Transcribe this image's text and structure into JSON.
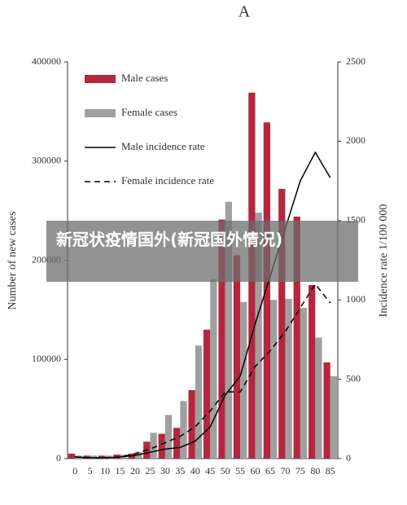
{
  "chart_data": {
    "type": "bar",
    "title": "A",
    "ylabel": "Number of new cases",
    "y2label": "Incidence rate 1/100 000",
    "categories": [
      "0",
      "5",
      "10",
      "15",
      "20",
      "25",
      "30",
      "35",
      "40",
      "45",
      "50",
      "55",
      "60",
      "65",
      "70",
      "75",
      "80",
      "85"
    ],
    "series": [
      {
        "name": "Male cases",
        "type": "bar",
        "color": "#b5273f",
        "values": [
          5000,
          3000,
          3000,
          4000,
          5000,
          17000,
          25000,
          31000,
          69000,
          130000,
          241000,
          205000,
          369000,
          339000,
          272000,
          244000,
          175000,
          97000
        ]
      },
      {
        "name": "Female cases",
        "type": "bar",
        "color": "#a0a0a0",
        "values": [
          3000,
          3000,
          3000,
          4000,
          7000,
          26000,
          44000,
          58000,
          114000,
          181000,
          259000,
          158000,
          248000,
          160000,
          161000,
          152000,
          122000,
          83000
        ]
      },
      {
        "name": "Male incidence rate",
        "type": "line",
        "axis": "y2",
        "color": "#000000",
        "dash": "solid",
        "values": [
          10,
          5,
          5,
          10,
          20,
          40,
          60,
          70,
          110,
          200,
          400,
          520,
          850,
          1150,
          1450,
          1750,
          1930,
          1770
        ]
      },
      {
        "name": "Female incidence rate",
        "type": "line",
        "axis": "y2",
        "color": "#000000",
        "dash": "dashed",
        "values": [
          10,
          5,
          5,
          10,
          30,
          60,
          100,
          140,
          200,
          300,
          420,
          420,
          580,
          680,
          800,
          950,
          1100,
          980
        ]
      }
    ],
    "ylim": [
      0,
      400000
    ],
    "yticks": [
      0,
      100000,
      200000,
      300000,
      400000
    ],
    "y2lim": [
      0,
      2500
    ],
    "y2ticks": [
      0,
      500,
      1000,
      1500,
      2000,
      2500
    ],
    "grid": false,
    "legend": "upper-left"
  },
  "caption": "新冠状疫情国外(新冠国外情况)"
}
